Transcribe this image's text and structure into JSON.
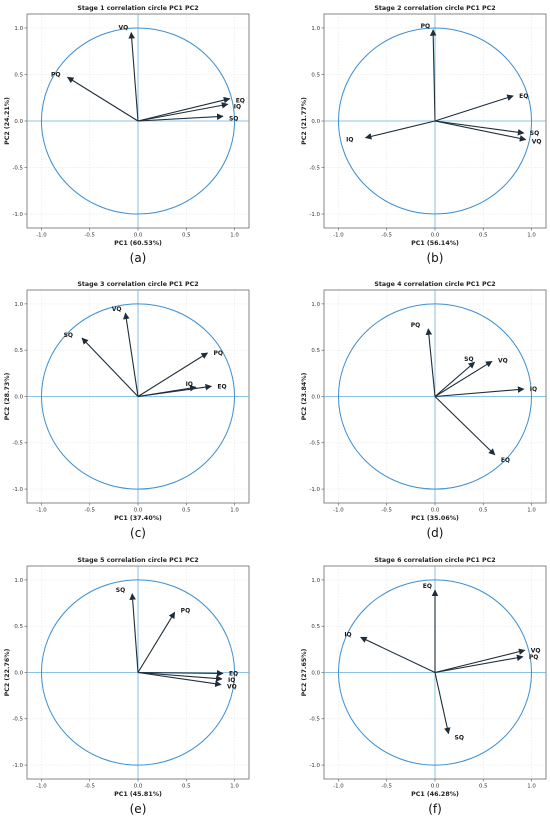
{
  "chart_data": [
    {
      "type": "scatter",
      "title": "Stage 1 correlation circle PC1 PC2",
      "xlabel": "PC1 (60.53%)",
      "ylabel": "PC2 (24.21%)",
      "caption": "(a)",
      "xlim": [
        -1.15,
        1.15
      ],
      "ylim": [
        -1.15,
        1.15
      ],
      "xticks": [
        "-1.0",
        "-0.5",
        "0.0",
        "0.5",
        "1.0"
      ],
      "yticks": [
        "-1.0",
        "-0.5",
        "0.0",
        "0.5",
        "1.0"
      ],
      "grid": true,
      "unit_circle": true,
      "vectors": [
        {
          "label": "VQ",
          "x": -0.07,
          "y": 0.95
        },
        {
          "label": "PQ",
          "x": -0.73,
          "y": 0.47
        },
        {
          "label": "EQ",
          "x": 0.95,
          "y": 0.24
        },
        {
          "label": "IQ",
          "x": 0.93,
          "y": 0.18
        },
        {
          "label": "SQ",
          "x": 0.88,
          "y": 0.05
        }
      ]
    },
    {
      "type": "scatter",
      "title": "Stage 2 correlation circle PC1 PC2",
      "xlabel": "PC1 (56.14%)",
      "ylabel": "PC2 (21.77%)",
      "caption": "(b)",
      "xlim": [
        -1.15,
        1.15
      ],
      "ylim": [
        -1.15,
        1.15
      ],
      "xticks": [
        "-1.0",
        "-0.5",
        "0.0",
        "0.5",
        "1.0"
      ],
      "yticks": [
        "-1.0",
        "-0.5",
        "0.0",
        "0.5",
        "1.0"
      ],
      "grid": true,
      "unit_circle": true,
      "vectors": [
        {
          "label": "PQ",
          "x": -0.02,
          "y": 0.98
        },
        {
          "label": "EQ",
          "x": 0.81,
          "y": 0.27
        },
        {
          "label": "IQ",
          "x": -0.72,
          "y": -0.18
        },
        {
          "label": "SQ",
          "x": 0.92,
          "y": -0.13
        },
        {
          "label": "VQ",
          "x": 0.94,
          "y": -0.2
        }
      ]
    },
    {
      "type": "scatter",
      "title": "Stage 3 correlation circle PC1 PC2",
      "xlabel": "PC1 (37.40%)",
      "ylabel": "PC2 (28.73%)",
      "caption": "(c)",
      "xlim": [
        -1.15,
        1.15
      ],
      "ylim": [
        -1.15,
        1.15
      ],
      "xticks": [
        "-1.0",
        "-0.5",
        "0.0",
        "0.5",
        "1.0"
      ],
      "yticks": [
        "-1.0",
        "-0.5",
        "0.0",
        "0.5",
        "1.0"
      ],
      "grid": true,
      "unit_circle": true,
      "vectors": [
        {
          "label": "VQ",
          "x": -0.13,
          "y": 0.9
        },
        {
          "label": "SQ",
          "x": -0.58,
          "y": 0.63
        },
        {
          "label": "PQ",
          "x": 0.72,
          "y": 0.47
        },
        {
          "label": "IQ",
          "x": 0.6,
          "y": 0.1
        },
        {
          "label": "EQ",
          "x": 0.76,
          "y": 0.11
        }
      ]
    },
    {
      "type": "scatter",
      "title": "Stage 4 correlation circle PC1 PC2",
      "xlabel": "PC1 (35.06%)",
      "ylabel": "PC2 (23.84%)",
      "caption": "(d)",
      "xlim": [
        -1.15,
        1.15
      ],
      "ylim": [
        -1.15,
        1.15
      ],
      "xticks": [
        "-1.0",
        "-0.5",
        "0.0",
        "0.5",
        "1.0"
      ],
      "yticks": [
        "-1.0",
        "-0.5",
        "0.0",
        "0.5",
        "1.0"
      ],
      "grid": true,
      "unit_circle": true,
      "vectors": [
        {
          "label": "PQ",
          "x": -0.07,
          "y": 0.73
        },
        {
          "label": "SQ",
          "x": 0.41,
          "y": 0.37
        },
        {
          "label": "VQ",
          "x": 0.59,
          "y": 0.38
        },
        {
          "label": "IQ",
          "x": 0.92,
          "y": 0.08
        },
        {
          "label": "EQ",
          "x": 0.62,
          "y": -0.63
        }
      ]
    },
    {
      "type": "scatter",
      "title": "Stage 5 correlation circle PC1 PC2",
      "xlabel": "PC1 (45.81%)",
      "ylabel": "PC2 (22.76%)",
      "caption": "(e)",
      "xlim": [
        -1.15,
        1.15
      ],
      "ylim": [
        -1.15,
        1.15
      ],
      "xticks": [
        "-1.0",
        "-0.5",
        "0.0",
        "0.5",
        "1.0"
      ],
      "yticks": [
        "-1.0",
        "-0.5",
        "0.0",
        "0.5",
        "1.0"
      ],
      "grid": true,
      "unit_circle": true,
      "vectors": [
        {
          "label": "SQ",
          "x": -0.06,
          "y": 0.85
        },
        {
          "label": "PQ",
          "x": 0.38,
          "y": 0.65
        },
        {
          "label": "EQ",
          "x": 0.88,
          "y": -0.01
        },
        {
          "label": "IQ",
          "x": 0.87,
          "y": -0.07
        },
        {
          "label": "VQ",
          "x": 0.86,
          "y": -0.13
        }
      ]
    },
    {
      "type": "scatter",
      "title": "Stage 6 correlation circle PC1 PC2",
      "xlabel": "PC1 (46.28%)",
      "ylabel": "PC2 (27.65%)",
      "caption": "(f)",
      "xlim": [
        -1.15,
        1.15
      ],
      "ylim": [
        -1.15,
        1.15
      ],
      "xticks": [
        "-1.0",
        "-0.5",
        "0.0",
        "0.5",
        "1.0"
      ],
      "yticks": [
        "-1.0",
        "-0.5",
        "0.0",
        "0.5",
        "1.0"
      ],
      "grid": true,
      "unit_circle": true,
      "vectors": [
        {
          "label": "EQ",
          "x": 0.0,
          "y": 0.89
        },
        {
          "label": "IQ",
          "x": -0.77,
          "y": 0.38
        },
        {
          "label": "VQ",
          "x": 0.93,
          "y": 0.24
        },
        {
          "label": "PQ",
          "x": 0.91,
          "y": 0.17
        },
        {
          "label": "SQ",
          "x": 0.14,
          "y": -0.66
        }
      ]
    }
  ],
  "colors": {
    "circle": "#3d8fd1",
    "axis_lines": "#6ab0de",
    "arrows": "#1f2d3a",
    "grid": "#e6e6e6",
    "frame": "#555555"
  }
}
